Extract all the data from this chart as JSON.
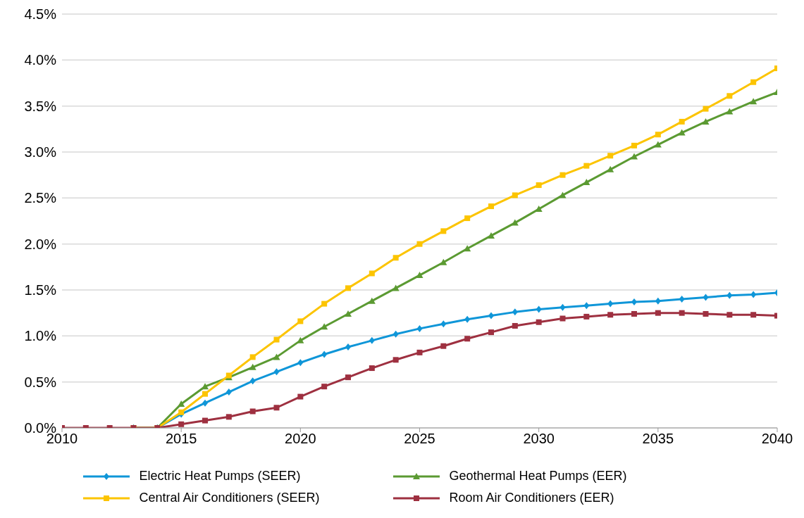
{
  "chart_data": {
    "type": "line",
    "x": [
      2010,
      2011,
      2012,
      2013,
      2014,
      2015,
      2016,
      2017,
      2018,
      2019,
      2020,
      2021,
      2022,
      2023,
      2024,
      2025,
      2026,
      2027,
      2028,
      2029,
      2030,
      2031,
      2032,
      2033,
      2034,
      2035,
      2036,
      2037,
      2038,
      2039,
      2040
    ],
    "xlim": [
      2010,
      2040
    ],
    "xticks": [
      2010,
      2015,
      2020,
      2025,
      2030,
      2035,
      2040
    ],
    "ylim": [
      0,
      4.5
    ],
    "yticks": [
      {
        "value": 0,
        "label": "0.0%"
      },
      {
        "value": 0.5,
        "label": "0.5%"
      },
      {
        "value": 1,
        "label": "1.0%"
      },
      {
        "value": 1.5,
        "label": "1.5%"
      },
      {
        "value": 2,
        "label": "2.0%"
      },
      {
        "value": 2.5,
        "label": "2.5%"
      },
      {
        "value": 3,
        "label": "3.0%"
      },
      {
        "value": 3.5,
        "label": "3.5%"
      },
      {
        "value": 4,
        "label": "4.0%"
      },
      {
        "value": 4.5,
        "label": "4.5%"
      }
    ],
    "grid": "y",
    "legend": "bottom",
    "line_style": "solid",
    "series": [
      {
        "name": "Electric Heat Pumps (SEER)",
        "color": "#0f96d8",
        "marker": "diamond",
        "values": [
          null,
          null,
          null,
          0,
          0,
          0.15,
          0.27,
          0.39,
          0.51,
          0.61,
          0.71,
          0.8,
          0.88,
          0.95,
          1.02,
          1.08,
          1.13,
          1.18,
          1.22,
          1.26,
          1.29,
          1.31,
          1.33,
          1.35,
          1.37,
          1.38,
          1.4,
          1.42,
          1.44,
          1.45,
          1.47
        ]
      },
      {
        "name": "Geothermal Heat Pumps (EER)",
        "color": "#5b9a32",
        "marker": "triangle",
        "values": [
          null,
          null,
          null,
          0,
          0,
          0.26,
          0.45,
          0.55,
          0.66,
          0.77,
          0.95,
          1.1,
          1.24,
          1.38,
          1.52,
          1.66,
          1.8,
          1.95,
          2.09,
          2.23,
          2.38,
          2.53,
          2.67,
          2.81,
          2.95,
          3.08,
          3.21,
          3.33,
          3.44,
          3.55,
          3.65
        ]
      },
      {
        "name": "Central Air Conditioners (SEER)",
        "color": "#fcc400",
        "marker": "square",
        "values": [
          null,
          null,
          null,
          0,
          0,
          0.17,
          0.37,
          0.57,
          0.77,
          0.96,
          1.16,
          1.35,
          1.52,
          1.68,
          1.85,
          2.0,
          2.14,
          2.28,
          2.41,
          2.53,
          2.64,
          2.75,
          2.85,
          2.96,
          3.07,
          3.19,
          3.33,
          3.47,
          3.61,
          3.76,
          3.91
        ]
      },
      {
        "name": "Room Air Conditioners (EER)",
        "color": "#9e3040",
        "marker": "square",
        "values": [
          0,
          0,
          0,
          0,
          0,
          0.04,
          0.08,
          0.12,
          0.18,
          0.22,
          0.34,
          0.45,
          0.55,
          0.65,
          0.74,
          0.82,
          0.89,
          0.97,
          1.04,
          1.11,
          1.15,
          1.19,
          1.21,
          1.23,
          1.24,
          1.25,
          1.25,
          1.24,
          1.23,
          1.23,
          1.22
        ]
      }
    ]
  }
}
